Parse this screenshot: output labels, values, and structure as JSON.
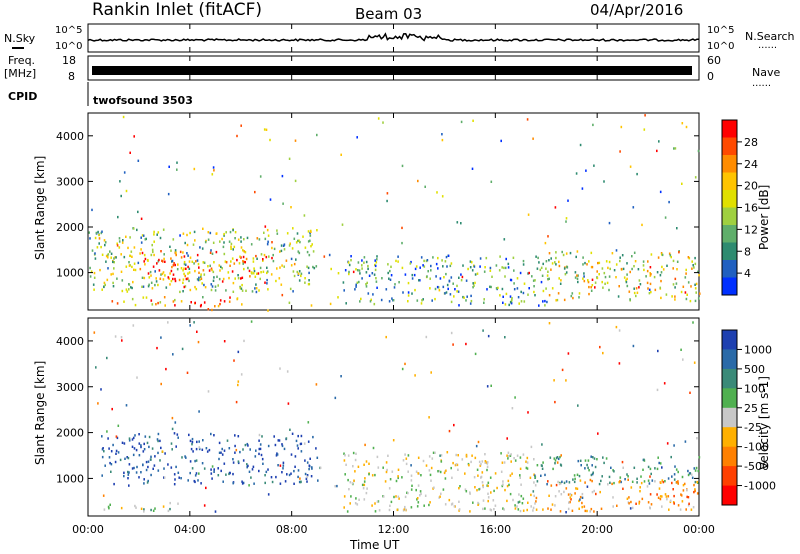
{
  "header": {
    "title": "Rankin Inlet (fitACF)",
    "beam": "Beam 03",
    "date": "04/Apr/2016"
  },
  "panels": {
    "nsky_label": "N.Sky",
    "nsearch_label": "N.Search",
    "noise_ticks": [
      "10^5",
      "10^0"
    ],
    "freq_label": "Freq.",
    "freq_unit": "[MHz]",
    "freq_ticks": [
      "18",
      "8"
    ],
    "nave_label": "Nave",
    "nave_ticks": [
      "60",
      "0"
    ],
    "cpid_label": "CPID",
    "cpid_value": "twofsound 3503",
    "dots": "......"
  },
  "colorbars": {
    "power": {
      "label": "Power [dB]",
      "ticks": [
        "28",
        "24",
        "20",
        "16",
        "12",
        "8",
        "4"
      ],
      "colors": [
        "#ff0000",
        "#ff4a00",
        "#ff8c00",
        "#ffc400",
        "#e0e000",
        "#9fd040",
        "#5fae6a",
        "#2e8b70",
        "#2060c0",
        "#0030ff"
      ]
    },
    "velocity": {
      "label": "Velocity [m s-1]",
      "ticks": [
        "1000",
        "500",
        "100",
        "25",
        "-25",
        "-100",
        "-500",
        "-1000"
      ],
      "colors": [
        "#1e40b0",
        "#2a6aa8",
        "#3a8a78",
        "#50b050",
        "#c8c8c8",
        "#ffb000",
        "#ff8000",
        "#ff4000",
        "#ff0000"
      ]
    }
  },
  "axes": {
    "ylabel": "Slant Range [km]",
    "xlabel": "Time UT",
    "xticks": [
      "00:00",
      "04:00",
      "08:00",
      "12:00",
      "16:00",
      "20:00",
      "00:00"
    ],
    "yticks": [
      "4000",
      "3000",
      "2000",
      "1000"
    ]
  },
  "chart_data": {
    "type": "heatmap",
    "x_range_hours": [
      0,
      24
    ],
    "y_range_km": [
      180,
      4500
    ],
    "power_regions": [
      {
        "t0": 0.0,
        "t1": 9.0,
        "r0": 600,
        "r1": 2000,
        "power_db": 14
      },
      {
        "t0": 2.0,
        "t1": 7.0,
        "r0": 800,
        "r1": 1500,
        "power_db": 24
      },
      {
        "t0": 0.8,
        "t1": 3.8,
        "r0": 300,
        "r1": 500,
        "power_db": 22
      },
      {
        "t0": 4.0,
        "t1": 6.0,
        "r0": 200,
        "r1": 500,
        "power_db": 26
      },
      {
        "t0": 10.0,
        "t1": 18.0,
        "r0": 300,
        "r1": 1400,
        "power_db": 10
      },
      {
        "t0": 18.0,
        "t1": 24.0,
        "r0": 400,
        "r1": 1500,
        "power_db": 16
      }
    ],
    "velocity_regions": [
      {
        "t0": 0.5,
        "t1": 9.0,
        "r0": 900,
        "r1": 2000,
        "velocity": 800
      },
      {
        "t0": 0.5,
        "t1": 3.5,
        "r0": 300,
        "r1": 500,
        "velocity": 100
      },
      {
        "t0": 10.0,
        "t1": 17.5,
        "r0": 300,
        "r1": 1600,
        "velocity": 0
      },
      {
        "t0": 17.5,
        "t1": 24.0,
        "r0": 900,
        "r1": 1500,
        "velocity": 400
      },
      {
        "t0": 17.5,
        "t1": 24.0,
        "r0": 300,
        "r1": 1000,
        "velocity": -300
      }
    ]
  }
}
